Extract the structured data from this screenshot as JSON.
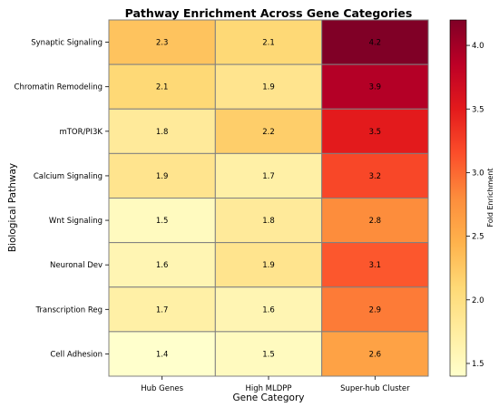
{
  "chart_data": {
    "type": "heatmap",
    "title": "Pathway Enrichment Across Gene Categories",
    "xlabel": "Gene Category",
    "ylabel": "Biological Pathway",
    "columns": [
      "Hub Genes",
      "High MLDPP",
      "Super-hub Cluster"
    ],
    "rows": [
      "Synaptic Signaling",
      "Chromatin Remodeling",
      "mTOR/PI3K",
      "Calcium Signaling",
      "Wnt Signaling",
      "Neuronal Dev",
      "Transcription Reg",
      "Cell Adhesion"
    ],
    "values": [
      [
        2.3,
        2.1,
        4.2
      ],
      [
        2.1,
        1.9,
        3.9
      ],
      [
        1.8,
        2.2,
        3.5
      ],
      [
        1.9,
        1.7,
        3.2
      ],
      [
        1.5,
        1.8,
        2.8
      ],
      [
        1.6,
        1.9,
        3.1
      ],
      [
        1.7,
        1.6,
        2.9
      ],
      [
        1.4,
        1.5,
        2.6
      ]
    ],
    "value_labels": [
      [
        "2.3",
        "2.1",
        "4.2"
      ],
      [
        "2.1",
        "1.9",
        "3.9"
      ],
      [
        "1.8",
        "2.2",
        "3.5"
      ],
      [
        "1.9",
        "1.7",
        "3.2"
      ],
      [
        "1.5",
        "1.8",
        "2.8"
      ],
      [
        "1.6",
        "1.9",
        "3.1"
      ],
      [
        "1.7",
        "1.6",
        "2.9"
      ],
      [
        "1.4",
        "1.5",
        "2.6"
      ]
    ],
    "colormap": "YlOrRd",
    "vmin": 1.4,
    "vmax": 4.2,
    "cell_border_color": "#808080",
    "colorbar": {
      "label": "Fold Enrichment",
      "ticks": [
        1.5,
        2.0,
        2.5,
        3.0,
        3.5,
        4.0
      ],
      "tick_labels": [
        "1.5",
        "2.0",
        "2.5",
        "3.0",
        "3.5",
        "4.0"
      ]
    }
  }
}
